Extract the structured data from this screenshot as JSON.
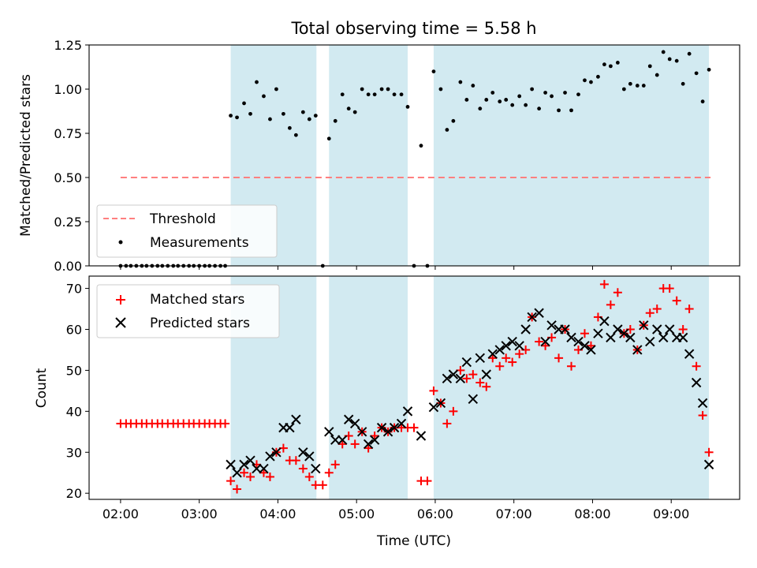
{
  "figure": {
    "title": "Total observing time = 5.58 h",
    "xlabel": "Time (UTC)",
    "x_ticks": [
      "02:00",
      "03:00",
      "04:00",
      "05:00",
      "06:00",
      "07:00",
      "08:00",
      "09:00"
    ],
    "shaded_color": "#add8e6"
  },
  "chart_data": [
    {
      "type": "scatter",
      "panel": "top",
      "ylabel": "Matched/Predicted stars",
      "ylim": [
        0,
        1.25
      ],
      "y_ticks": [
        "0.00",
        "0.25",
        "0.50",
        "0.75",
        "1.00",
        "1.25"
      ],
      "x_unit": "hours (UTC)",
      "xlim": [
        1.6,
        9.87
      ],
      "grid": false,
      "legend": {
        "position": "lower-left",
        "entries": [
          "Threshold",
          "Measurements"
        ]
      },
      "threshold": {
        "name": "Threshold",
        "value": 0.5,
        "x_range": [
          2.0,
          9.5
        ],
        "color": "#ff7f7f",
        "style": "dashed"
      },
      "shaded_intervals": [
        [
          3.4,
          4.49
        ],
        [
          4.65,
          5.65
        ],
        [
          5.98,
          9.48
        ]
      ],
      "series": [
        {
          "name": "Measurements",
          "color": "#000000",
          "marker": "dot",
          "points": [
            [
              2.0,
              0
            ],
            [
              2.07,
              0
            ],
            [
              2.13,
              0
            ],
            [
              2.2,
              0
            ],
            [
              2.27,
              0
            ],
            [
              2.33,
              0
            ],
            [
              2.4,
              0
            ],
            [
              2.47,
              0
            ],
            [
              2.53,
              0
            ],
            [
              2.6,
              0
            ],
            [
              2.67,
              0
            ],
            [
              2.73,
              0
            ],
            [
              2.8,
              0
            ],
            [
              2.87,
              0
            ],
            [
              2.93,
              0
            ],
            [
              3.0,
              0
            ],
            [
              3.07,
              0
            ],
            [
              3.13,
              0
            ],
            [
              3.2,
              0
            ],
            [
              3.27,
              0
            ],
            [
              3.33,
              0
            ],
            [
              3.4,
              0.85
            ],
            [
              3.48,
              0.84
            ],
            [
              3.57,
              0.92
            ],
            [
              3.65,
              0.86
            ],
            [
              3.73,
              1.04
            ],
            [
              3.82,
              0.96
            ],
            [
              3.9,
              0.83
            ],
            [
              3.98,
              1.0
            ],
            [
              4.07,
              0.86
            ],
            [
              4.15,
              0.78
            ],
            [
              4.23,
              0.74
            ],
            [
              4.32,
              0.87
            ],
            [
              4.4,
              0.83
            ],
            [
              4.48,
              0.85
            ],
            [
              4.57,
              0.0
            ],
            [
              4.65,
              0.72
            ],
            [
              4.73,
              0.82
            ],
            [
              4.82,
              0.97
            ],
            [
              4.9,
              0.89
            ],
            [
              4.98,
              0.87
            ],
            [
              5.07,
              1.0
            ],
            [
              5.15,
              0.97
            ],
            [
              5.23,
              0.97
            ],
            [
              5.32,
              1.0
            ],
            [
              5.4,
              1.0
            ],
            [
              5.48,
              0.97
            ],
            [
              5.57,
              0.97
            ],
            [
              5.65,
              0.9
            ],
            [
              5.73,
              0.0
            ],
            [
              5.82,
              0.68
            ],
            [
              5.9,
              0.0
            ],
            [
              5.98,
              1.1
            ],
            [
              6.07,
              1.0
            ],
            [
              6.15,
              0.77
            ],
            [
              6.23,
              0.82
            ],
            [
              6.32,
              1.04
            ],
            [
              6.4,
              0.94
            ],
            [
              6.48,
              1.02
            ],
            [
              6.57,
              0.89
            ],
            [
              6.65,
              0.94
            ],
            [
              6.73,
              0.98
            ],
            [
              6.82,
              0.93
            ],
            [
              6.9,
              0.94
            ],
            [
              6.98,
              0.91
            ],
            [
              7.07,
              0.96
            ],
            [
              7.15,
              0.91
            ],
            [
              7.23,
              1.0
            ],
            [
              7.32,
              0.89
            ],
            [
              7.4,
              0.98
            ],
            [
              7.48,
              0.96
            ],
            [
              7.57,
              0.88
            ],
            [
              7.65,
              0.98
            ],
            [
              7.73,
              0.88
            ],
            [
              7.82,
              0.97
            ],
            [
              7.9,
              1.05
            ],
            [
              7.98,
              1.04
            ],
            [
              8.07,
              1.07
            ],
            [
              8.15,
              1.14
            ],
            [
              8.23,
              1.13
            ],
            [
              8.32,
              1.15
            ],
            [
              8.4,
              1.0
            ],
            [
              8.48,
              1.03
            ],
            [
              8.57,
              1.02
            ],
            [
              8.65,
              1.02
            ],
            [
              8.73,
              1.13
            ],
            [
              8.82,
              1.08
            ],
            [
              8.9,
              1.21
            ],
            [
              8.98,
              1.17
            ],
            [
              9.07,
              1.16
            ],
            [
              9.15,
              1.03
            ],
            [
              9.23,
              1.2
            ],
            [
              9.32,
              1.09
            ],
            [
              9.4,
              0.93
            ],
            [
              9.48,
              1.11
            ]
          ]
        }
      ]
    },
    {
      "type": "scatter",
      "panel": "bottom",
      "ylabel": "Count",
      "ylim": [
        18.5,
        73
      ],
      "y_ticks": [
        "20",
        "30",
        "40",
        "50",
        "60",
        "70"
      ],
      "x_unit": "hours (UTC)",
      "xlim": [
        1.6,
        9.87
      ],
      "grid": false,
      "legend": {
        "position": "upper-left",
        "entries": [
          "Matched stars",
          "Predicted stars"
        ]
      },
      "shaded_intervals": [
        [
          3.4,
          4.49
        ],
        [
          4.65,
          5.65
        ],
        [
          5.98,
          9.48
        ]
      ],
      "series": [
        {
          "name": "Matched stars",
          "color": "#ff0000",
          "marker": "plus",
          "points": [
            [
              2.0,
              37
            ],
            [
              2.07,
              37
            ],
            [
              2.13,
              37
            ],
            [
              2.2,
              37
            ],
            [
              2.27,
              37
            ],
            [
              2.33,
              37
            ],
            [
              2.4,
              37
            ],
            [
              2.47,
              37
            ],
            [
              2.53,
              37
            ],
            [
              2.6,
              37
            ],
            [
              2.67,
              37
            ],
            [
              2.73,
              37
            ],
            [
              2.8,
              37
            ],
            [
              2.87,
              37
            ],
            [
              2.93,
              37
            ],
            [
              3.0,
              37
            ],
            [
              3.07,
              37
            ],
            [
              3.13,
              37
            ],
            [
              3.2,
              37
            ],
            [
              3.27,
              37
            ],
            [
              3.33,
              37
            ],
            [
              3.4,
              23
            ],
            [
              3.48,
              21
            ],
            [
              3.57,
              25
            ],
            [
              3.65,
              24
            ],
            [
              3.73,
              27
            ],
            [
              3.82,
              25
            ],
            [
              3.9,
              24
            ],
            [
              3.98,
              30
            ],
            [
              4.07,
              31
            ],
            [
              4.15,
              28
            ],
            [
              4.23,
              28
            ],
            [
              4.32,
              26
            ],
            [
              4.4,
              24
            ],
            [
              4.48,
              22
            ],
            [
              4.57,
              22
            ],
            [
              4.65,
              25
            ],
            [
              4.73,
              27
            ],
            [
              4.82,
              32
            ],
            [
              4.9,
              34
            ],
            [
              4.98,
              32
            ],
            [
              5.07,
              35
            ],
            [
              5.15,
              31
            ],
            [
              5.23,
              34
            ],
            [
              5.32,
              36
            ],
            [
              5.4,
              35
            ],
            [
              5.48,
              36
            ],
            [
              5.57,
              36
            ],
            [
              5.65,
              36
            ],
            [
              5.73,
              36
            ],
            [
              5.82,
              23
            ],
            [
              5.9,
              23
            ],
            [
              5.98,
              45
            ],
            [
              6.07,
              42
            ],
            [
              6.15,
              37
            ],
            [
              6.23,
              40
            ],
            [
              6.32,
              50
            ],
            [
              6.4,
              48
            ],
            [
              6.48,
              49
            ],
            [
              6.57,
              47
            ],
            [
              6.65,
              46
            ],
            [
              6.73,
              53
            ],
            [
              6.82,
              51
            ],
            [
              6.9,
              53
            ],
            [
              6.98,
              52
            ],
            [
              7.07,
              54
            ],
            [
              7.15,
              55
            ],
            [
              7.23,
              63
            ],
            [
              7.32,
              57
            ],
            [
              7.4,
              56
            ],
            [
              7.48,
              58
            ],
            [
              7.57,
              53
            ],
            [
              7.65,
              60
            ],
            [
              7.73,
              51
            ],
            [
              7.82,
              55
            ],
            [
              7.9,
              59
            ],
            [
              7.98,
              56
            ],
            [
              8.07,
              63
            ],
            [
              8.15,
              71
            ],
            [
              8.23,
              66
            ],
            [
              8.32,
              69
            ],
            [
              8.4,
              59
            ],
            [
              8.48,
              60
            ],
            [
              8.57,
              55
            ],
            [
              8.65,
              61
            ],
            [
              8.73,
              64
            ],
            [
              8.82,
              65
            ],
            [
              8.9,
              70
            ],
            [
              8.98,
              70
            ],
            [
              9.07,
              67
            ],
            [
              9.15,
              60
            ],
            [
              9.23,
              65
            ],
            [
              9.32,
              51
            ],
            [
              9.4,
              39
            ],
            [
              9.48,
              30
            ]
          ]
        },
        {
          "name": "Predicted stars",
          "color": "#000000",
          "marker": "cross",
          "points": [
            [
              3.4,
              27
            ],
            [
              3.48,
              25
            ],
            [
              3.57,
              27
            ],
            [
              3.65,
              28
            ],
            [
              3.73,
              26
            ],
            [
              3.82,
              26
            ],
            [
              3.9,
              29
            ],
            [
              3.98,
              30
            ],
            [
              4.07,
              36
            ],
            [
              4.15,
              36
            ],
            [
              4.23,
              38
            ],
            [
              4.32,
              30
            ],
            [
              4.4,
              29
            ],
            [
              4.48,
              26
            ],
            [
              4.65,
              35
            ],
            [
              4.73,
              33
            ],
            [
              4.82,
              33
            ],
            [
              4.9,
              38
            ],
            [
              4.98,
              37
            ],
            [
              5.07,
              35
            ],
            [
              5.15,
              32
            ],
            [
              5.23,
              33
            ],
            [
              5.32,
              36
            ],
            [
              5.4,
              35
            ],
            [
              5.48,
              36
            ],
            [
              5.57,
              37
            ],
            [
              5.65,
              40
            ],
            [
              5.82,
              34
            ],
            [
              5.98,
              41
            ],
            [
              6.07,
              42
            ],
            [
              6.15,
              48
            ],
            [
              6.23,
              49
            ],
            [
              6.32,
              48
            ],
            [
              6.4,
              52
            ],
            [
              6.48,
              43
            ],
            [
              6.57,
              53
            ],
            [
              6.65,
              49
            ],
            [
              6.73,
              54
            ],
            [
              6.82,
              55
            ],
            [
              6.9,
              56
            ],
            [
              6.98,
              57
            ],
            [
              7.07,
              56
            ],
            [
              7.15,
              60
            ],
            [
              7.23,
              63
            ],
            [
              7.32,
              64
            ],
            [
              7.4,
              57
            ],
            [
              7.48,
              61
            ],
            [
              7.57,
              60
            ],
            [
              7.65,
              60
            ],
            [
              7.73,
              58
            ],
            [
              7.82,
              57
            ],
            [
              7.9,
              56
            ],
            [
              7.98,
              55
            ],
            [
              8.07,
              59
            ],
            [
              8.15,
              62
            ],
            [
              8.23,
              58
            ],
            [
              8.32,
              60
            ],
            [
              8.4,
              59
            ],
            [
              8.48,
              58
            ],
            [
              8.57,
              55
            ],
            [
              8.65,
              61
            ],
            [
              8.73,
              57
            ],
            [
              8.82,
              60
            ],
            [
              8.9,
              58
            ],
            [
              8.98,
              60
            ],
            [
              9.07,
              58
            ],
            [
              9.15,
              58
            ],
            [
              9.23,
              54
            ],
            [
              9.32,
              47
            ],
            [
              9.4,
              42
            ],
            [
              9.48,
              27
            ]
          ]
        }
      ]
    }
  ]
}
